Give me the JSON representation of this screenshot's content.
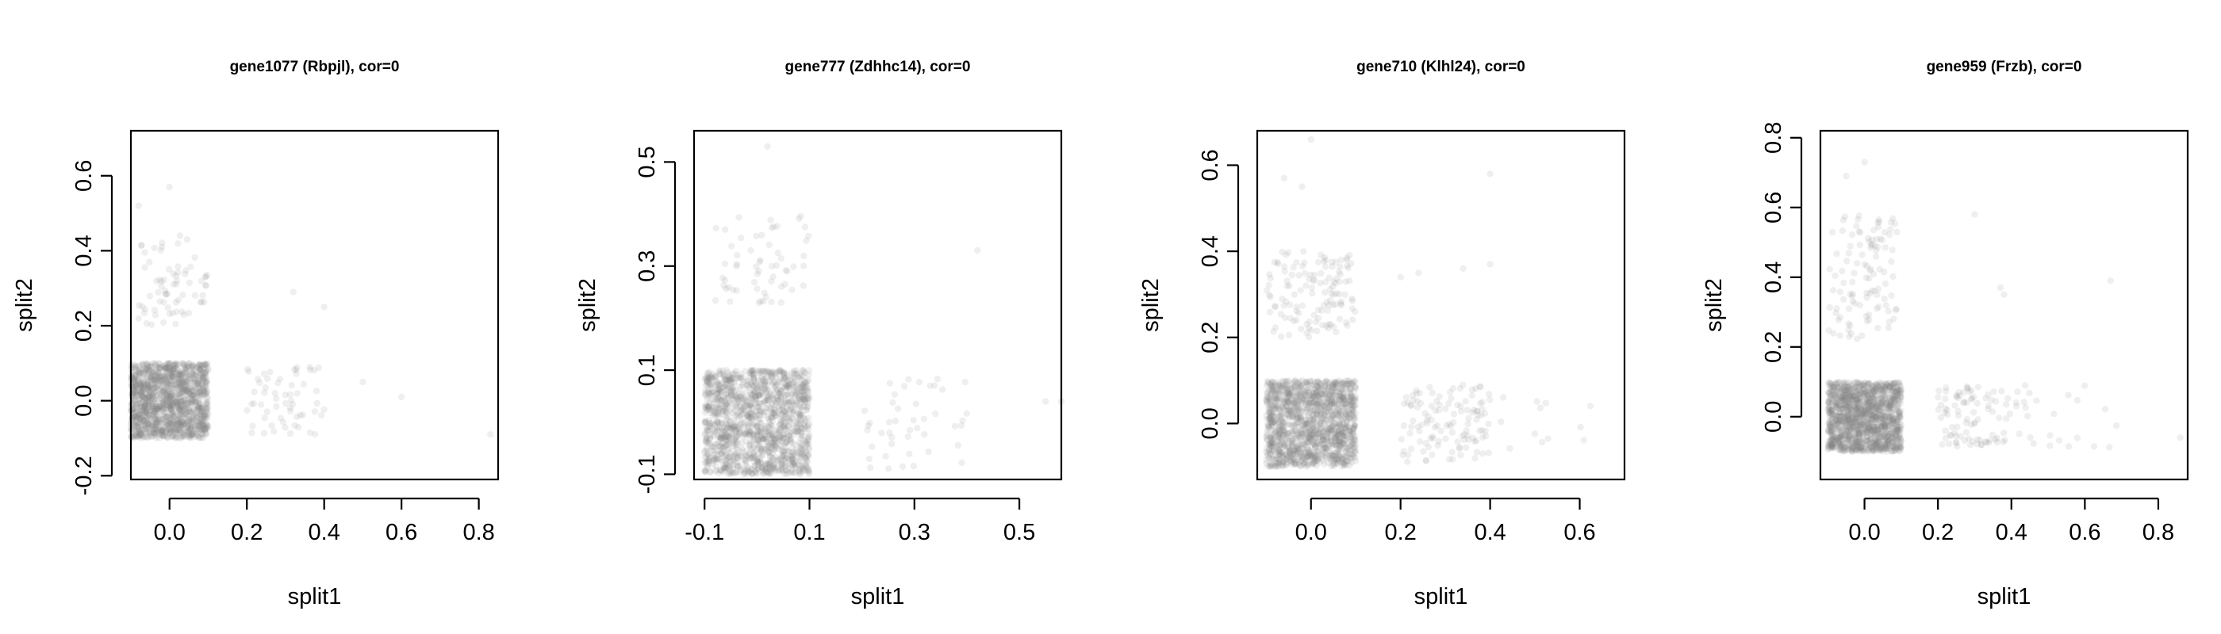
{
  "chart_data": [
    {
      "type": "scatter",
      "title": "gene1077 (Rbpjl), cor=0",
      "xlabel": "split1",
      "ylabel": "split2",
      "xlim": [
        -0.1,
        0.85
      ],
      "ylim": [
        -0.21,
        0.72
      ],
      "xticks": [
        {
          "v": 0.0,
          "label": "0.0"
        },
        {
          "v": 0.2,
          "label": "0.2"
        },
        {
          "v": 0.4,
          "label": "0.4"
        },
        {
          "v": 0.6,
          "label": "0.6"
        },
        {
          "v": 0.8,
          "label": "0.8"
        }
      ],
      "yticks": [
        {
          "v": -0.2,
          "label": "-0.2"
        },
        {
          "v": 0.0,
          "label": "0.0"
        },
        {
          "v": 0.2,
          "label": "0.2"
        },
        {
          "v": 0.4,
          "label": "0.4"
        },
        {
          "v": 0.6,
          "label": "0.6"
        }
      ],
      "point_color": "#808080",
      "clusters": [
        {
          "x": [
            -0.1,
            0.1
          ],
          "y": [
            -0.1,
            0.1
          ],
          "n": 1500
        },
        {
          "x": [
            -0.08,
            0.1
          ],
          "y": [
            0.2,
            0.44
          ],
          "n": 70
        },
        {
          "x": [
            0.2,
            0.4
          ],
          "y": [
            -0.09,
            0.09
          ],
          "n": 60
        }
      ],
      "points": [
        [
          -0.08,
          0.52
        ],
        [
          0.0,
          0.57
        ],
        [
          0.32,
          0.29
        ],
        [
          0.4,
          0.25
        ],
        [
          0.5,
          0.05
        ],
        [
          0.6,
          0.01
        ],
        [
          0.83,
          -0.09
        ]
      ]
    },
    {
      "type": "scatter",
      "title": "gene777 (Zdhhc14), cor=0",
      "xlabel": "split1",
      "ylabel": "split2",
      "xlim": [
        -0.12,
        0.58
      ],
      "ylim": [
        -0.11,
        0.56
      ],
      "xticks": [
        {
          "v": -0.1,
          "label": "-0.1"
        },
        {
          "v": 0.1,
          "label": "0.1"
        },
        {
          "v": 0.3,
          "label": "0.3"
        },
        {
          "v": 0.5,
          "label": "0.5"
        }
      ],
      "yticks": [
        {
          "v": -0.1,
          "label": "-0.1"
        },
        {
          "v": 0.1,
          "label": "0.1"
        },
        {
          "v": 0.3,
          "label": "0.3"
        },
        {
          "v": 0.5,
          "label": "0.5"
        }
      ],
      "point_color": "#808080",
      "clusters": [
        {
          "x": [
            -0.1,
            0.1
          ],
          "y": [
            -0.1,
            0.1
          ],
          "n": 1500
        },
        {
          "x": [
            -0.08,
            0.1
          ],
          "y": [
            0.22,
            0.4
          ],
          "n": 60
        },
        {
          "x": [
            0.2,
            0.4
          ],
          "y": [
            -0.09,
            0.09
          ],
          "n": 45
        }
      ],
      "points": [
        [
          0.02,
          0.53
        ],
        [
          0.42,
          0.33
        ],
        [
          0.55,
          0.04
        ],
        [
          0.58,
          0.04
        ]
      ]
    },
    {
      "type": "scatter",
      "title": "gene710 (Klhl24), cor=0",
      "xlabel": "split1",
      "ylabel": "split2",
      "xlim": [
        -0.12,
        0.7
      ],
      "ylim": [
        -0.13,
        0.68
      ],
      "xticks": [
        {
          "v": 0.0,
          "label": "0.0"
        },
        {
          "v": 0.2,
          "label": "0.2"
        },
        {
          "v": 0.4,
          "label": "0.4"
        },
        {
          "v": 0.6,
          "label": "0.6"
        }
      ],
      "yticks": [
        {
          "v": 0.0,
          "label": "0.0"
        },
        {
          "v": 0.2,
          "label": "0.2"
        },
        {
          "v": 0.4,
          "label": "0.4"
        },
        {
          "v": 0.6,
          "label": "0.6"
        }
      ],
      "point_color": "#808080",
      "clusters": [
        {
          "x": [
            -0.1,
            0.1
          ],
          "y": [
            -0.1,
            0.1
          ],
          "n": 1500
        },
        {
          "x": [
            -0.1,
            0.1
          ],
          "y": [
            0.2,
            0.4
          ],
          "n": 130
        },
        {
          "x": [
            0.2,
            0.4
          ],
          "y": [
            -0.09,
            0.09
          ],
          "n": 120
        },
        {
          "x": [
            0.42,
            0.64
          ],
          "y": [
            -0.06,
            0.08
          ],
          "n": 12
        }
      ],
      "points": [
        [
          -0.06,
          0.57
        ],
        [
          -0.02,
          0.55
        ],
        [
          0.0,
          0.66
        ],
        [
          0.2,
          0.34
        ],
        [
          0.24,
          0.35
        ],
        [
          0.4,
          0.37
        ],
        [
          0.4,
          0.58
        ],
        [
          0.34,
          0.36
        ]
      ]
    },
    {
      "type": "scatter",
      "title": "gene959 (Frzb), cor=0",
      "xlabel": "split1",
      "ylabel": "split2",
      "xlim": [
        -0.12,
        0.88
      ],
      "ylim": [
        -0.18,
        0.82
      ],
      "xticks": [
        {
          "v": 0.0,
          "label": "0.0"
        },
        {
          "v": 0.2,
          "label": "0.2"
        },
        {
          "v": 0.4,
          "label": "0.4"
        },
        {
          "v": 0.6,
          "label": "0.6"
        },
        {
          "v": 0.8,
          "label": "0.8"
        }
      ],
      "yticks": [
        {
          "v": 0.0,
          "label": "0.0"
        },
        {
          "v": 0.2,
          "label": "0.2"
        },
        {
          "v": 0.4,
          "label": "0.4"
        },
        {
          "v": 0.6,
          "label": "0.6"
        },
        {
          "v": 0.8,
          "label": "0.8"
        }
      ],
      "point_color": "#808080",
      "clusters": [
        {
          "x": [
            -0.1,
            0.1
          ],
          "y": [
            -0.1,
            0.1
          ],
          "n": 1500
        },
        {
          "x": [
            -0.1,
            0.09
          ],
          "y": [
            0.22,
            0.58
          ],
          "n": 110
        },
        {
          "x": [
            0.2,
            0.4
          ],
          "y": [
            -0.09,
            0.09
          ],
          "n": 90
        },
        {
          "x": [
            0.4,
            0.7
          ],
          "y": [
            -0.09,
            0.09
          ],
          "n": 25
        }
      ],
      "points": [
        [
          -0.05,
          0.69
        ],
        [
          0.0,
          0.73
        ],
        [
          0.3,
          0.58
        ],
        [
          0.37,
          0.37
        ],
        [
          0.38,
          0.35
        ],
        [
          0.67,
          0.39
        ],
        [
          0.86,
          -0.06
        ]
      ]
    }
  ]
}
